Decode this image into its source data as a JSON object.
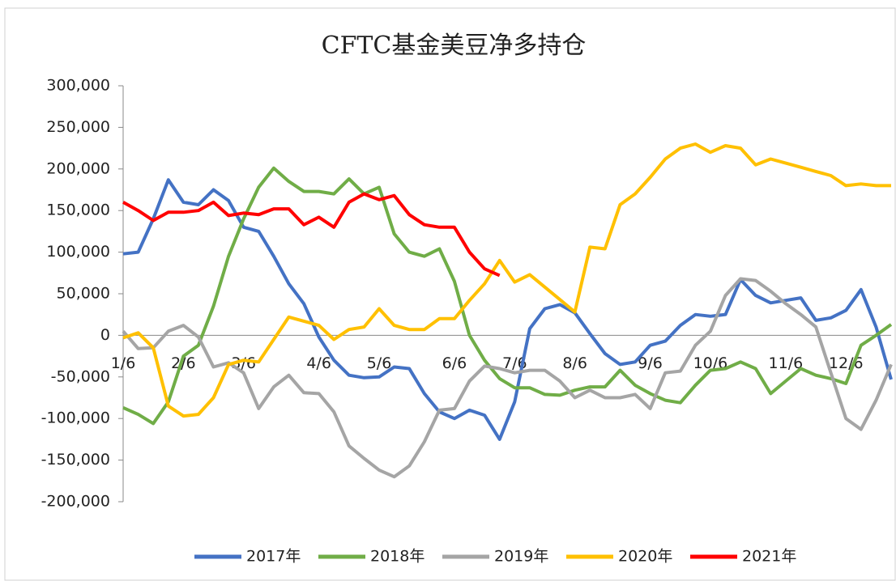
{
  "chart_data": {
    "type": "line",
    "title": "CFTC基金美豆净多持仓",
    "categories": [
      "1/6",
      null,
      null,
      null,
      "2/6",
      null,
      null,
      null,
      "3/6",
      null,
      null,
      null,
      null,
      "4/6",
      null,
      null,
      null,
      "5/6",
      null,
      null,
      null,
      null,
      "6/6",
      null,
      null,
      null,
      "7/6",
      null,
      null,
      null,
      "8/6",
      null,
      null,
      null,
      null,
      "9/6",
      null,
      null,
      null,
      "10/6",
      null,
      null,
      null,
      null,
      "11/6",
      null,
      null,
      null,
      "12/6",
      null,
      null,
      null
    ],
    "series": [
      {
        "name": "2017年",
        "color": "#4472c4",
        "values": [
          98000,
          100000,
          140000,
          187000,
          160000,
          157000,
          175000,
          162000,
          130000,
          125000,
          95000,
          62000,
          38000,
          -2000,
          -30000,
          -48000,
          -51000,
          -50000,
          -38000,
          -40000,
          -70000,
          -92000,
          -100000,
          -90000,
          -96000,
          -125000,
          -80000,
          8000,
          32000,
          37000,
          27000,
          2000,
          -22000,
          -35000,
          -32000,
          -12000,
          -7000,
          12000,
          25000,
          23000,
          25000,
          67000,
          48000,
          39000,
          42000,
          45000,
          18000,
          21000,
          30000,
          55000,
          10000,
          -53000
        ]
      },
      {
        "name": "2018年",
        "color": "#70ad47",
        "values": [
          -87000,
          -95000,
          -106000,
          -80000,
          -25000,
          -12000,
          35000,
          95000,
          140000,
          178000,
          201000,
          185000,
          173000,
          173000,
          170000,
          188000,
          170000,
          178000,
          122000,
          100000,
          95000,
          104000,
          65000,
          0,
          -30000,
          -52000,
          -63000,
          -63000,
          -71000,
          -72000,
          -66000,
          -62000,
          -62000,
          -42000,
          -60000,
          -70000,
          -78000,
          -81000,
          -60000,
          -42000,
          -40000,
          -32000,
          -40000,
          -70000,
          -55000,
          -40000,
          -48000,
          -52000,
          -58000,
          -12000,
          0,
          13000
        ]
      },
      {
        "name": "2019年",
        "color": "#a5a5a5",
        "values": [
          5000,
          -16000,
          -15000,
          5000,
          12000,
          -2000,
          -38000,
          -33000,
          -45000,
          -88000,
          -62000,
          -48000,
          -69000,
          -70000,
          -92000,
          -133000,
          -148000,
          -162000,
          -170000,
          -157000,
          -128000,
          -90000,
          -88000,
          -55000,
          -37000,
          -40000,
          -45000,
          -42000,
          -42000,
          -55000,
          -75000,
          -66000,
          -75000,
          -75000,
          -71000,
          -88000,
          -45000,
          -43000,
          -12000,
          5000,
          48000,
          68000,
          66000,
          53000,
          38000,
          25000,
          10000,
          -45000,
          -100000,
          -113000,
          -78000,
          -35000
        ]
      },
      {
        "name": "2020年",
        "color": "#ffc000",
        "values": [
          -3000,
          3000,
          -15000,
          -85000,
          -97000,
          -95000,
          -75000,
          -35000,
          -30000,
          -32000,
          -5000,
          22000,
          17000,
          12000,
          -5000,
          7000,
          10000,
          32000,
          12000,
          7000,
          7000,
          20000,
          20000,
          42000,
          62000,
          90000,
          64000,
          73000,
          58000,
          43000,
          28000,
          106000,
          104000,
          157000,
          170000,
          190000,
          212000,
          225000,
          230000,
          220000,
          228000,
          225000,
          205000,
          212000,
          207000,
          202000,
          197000,
          192000,
          180000,
          182000,
          180000,
          180000
        ]
      },
      {
        "name": "2021年",
        "color": "#ff0000",
        "values": [
          160000,
          150000,
          138000,
          148000,
          148000,
          150000,
          160000,
          144000,
          147000,
          145000,
          152000,
          152000,
          133000,
          142000,
          130000,
          160000,
          170000,
          163000,
          168000,
          145000,
          133000,
          130000,
          130000,
          100000,
          80000,
          72000,
          null,
          null,
          null,
          null,
          null,
          null,
          null,
          null,
          null,
          null,
          null,
          null,
          null,
          null,
          null,
          null,
          null,
          null,
          null,
          null,
          null,
          null,
          null,
          null,
          null,
          null
        ]
      }
    ],
    "ylim": [
      -200000,
      300000
    ],
    "yticks": [
      {
        "value": -200000,
        "label": "-200,000"
      },
      {
        "value": -150000,
        "label": "-150,000"
      },
      {
        "value": -100000,
        "label": "-100,000"
      },
      {
        "value": -50000,
        "label": "-50,000"
      },
      0,
      {
        "value": 50000,
        "label": "50,000"
      },
      {
        "value": 100000,
        "label": "100,000"
      },
      {
        "value": 150000,
        "label": "150,000"
      },
      {
        "value": 200000,
        "label": "200,000"
      },
      {
        "value": 250000,
        "label": "250,000"
      },
      {
        "value": 300000,
        "label": "300,000"
      }
    ],
    "grid": false,
    "legend": "bottom"
  }
}
